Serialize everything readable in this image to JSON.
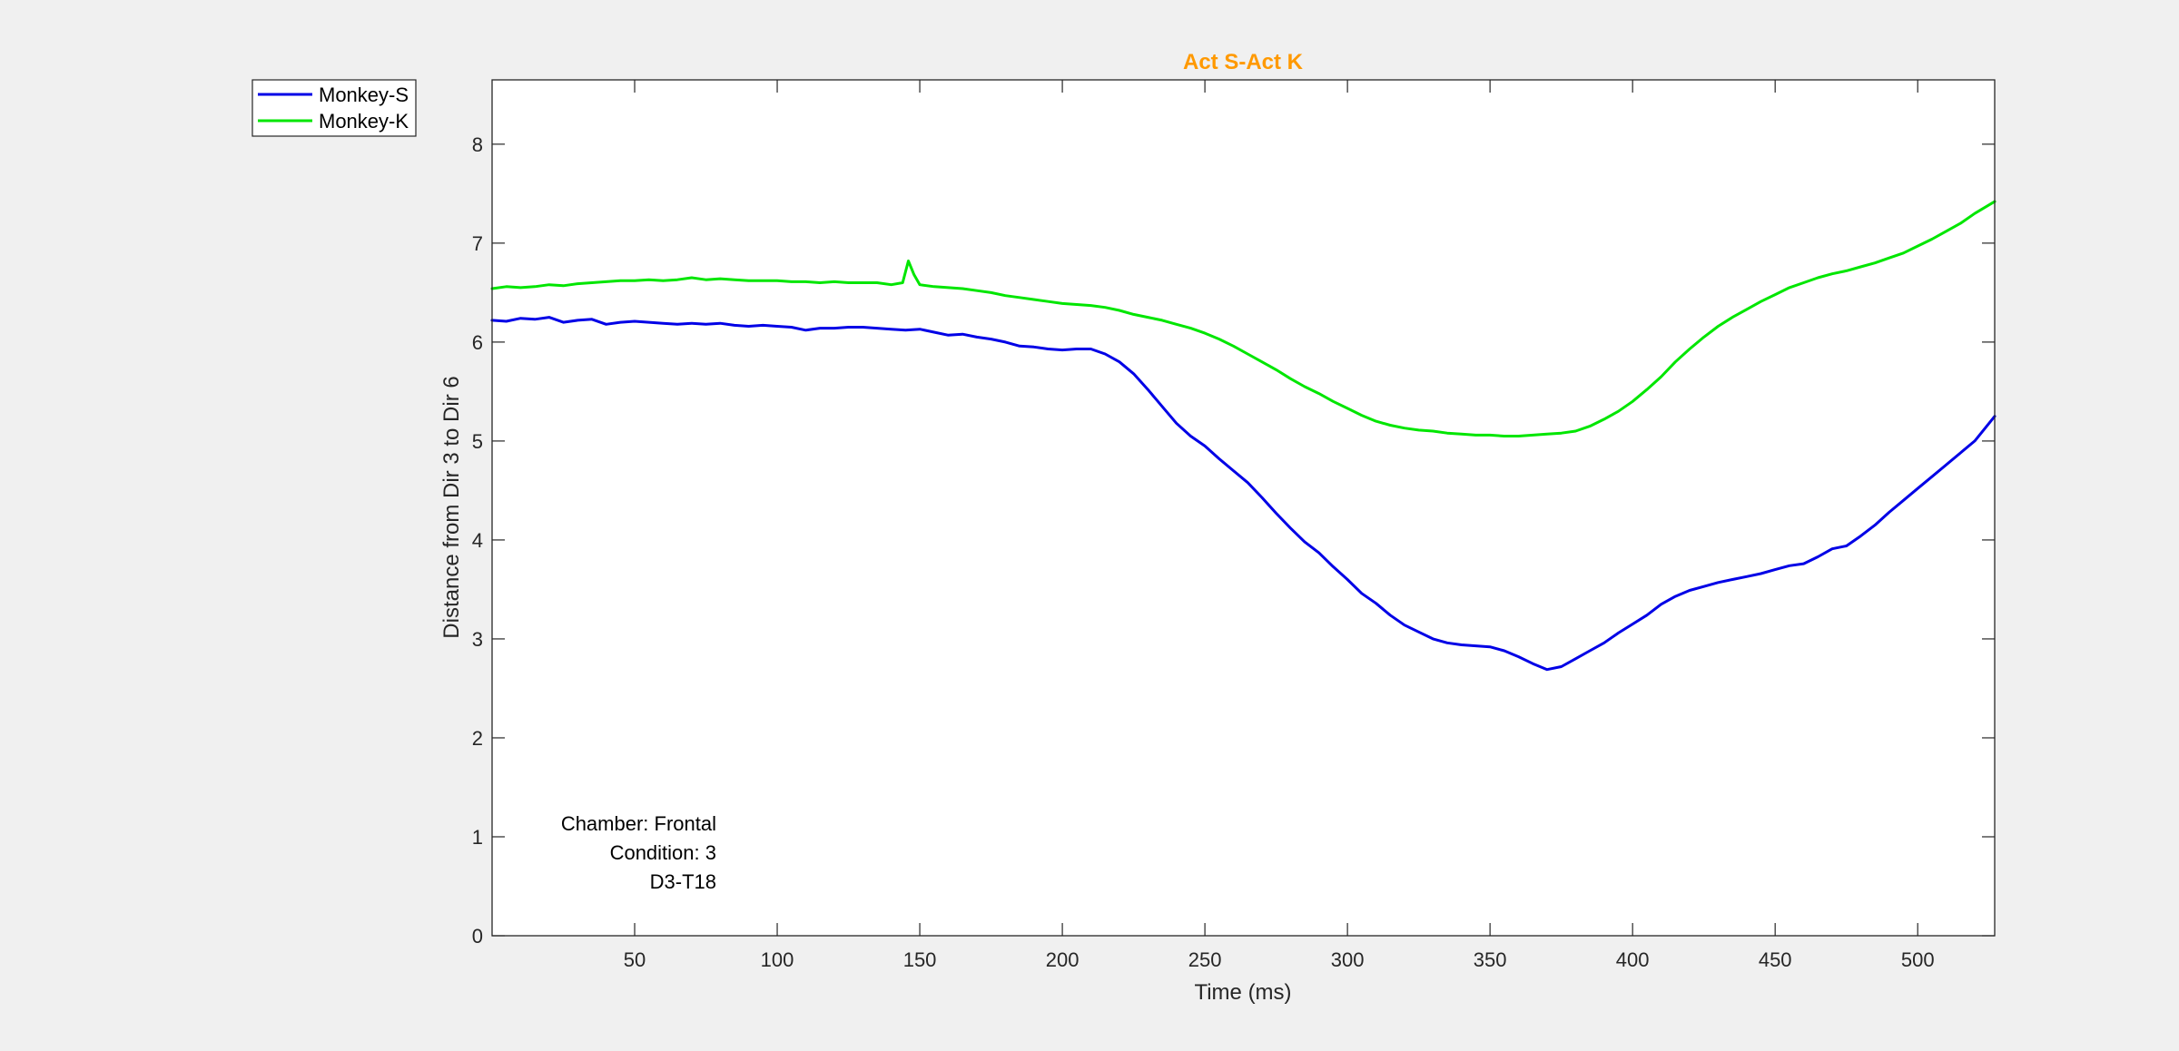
{
  "chart_data": {
    "type": "line",
    "title": "Act S-Act K",
    "title_color": "#ff9900",
    "xlabel": "Time (ms)",
    "ylabel": "Distance from Dir 3 to Dir 6",
    "xlim": [
      0,
      527
    ],
    "ylim": [
      0,
      8.65
    ],
    "xticks": [
      50,
      100,
      150,
      200,
      250,
      300,
      350,
      400,
      450,
      500
    ],
    "yticks": [
      0,
      1,
      2,
      3,
      4,
      5,
      6,
      7,
      8
    ],
    "grid": false,
    "legend_position": "outside top-left",
    "annotation_lines": [
      "Chamber: Frontal",
      "Condition: 3",
      "D3-T18"
    ],
    "series": [
      {
        "name": "Monkey-S",
        "color": "#0000e6",
        "x": [
          0,
          5,
          10,
          15,
          20,
          25,
          30,
          35,
          40,
          45,
          50,
          55,
          60,
          65,
          70,
          75,
          80,
          85,
          90,
          95,
          100,
          105,
          110,
          115,
          120,
          125,
          130,
          135,
          140,
          145,
          150,
          155,
          160,
          165,
          170,
          175,
          180,
          185,
          190,
          195,
          200,
          205,
          210,
          215,
          220,
          225,
          230,
          235,
          240,
          245,
          250,
          255,
          260,
          265,
          270,
          275,
          280,
          285,
          290,
          295,
          300,
          305,
          310,
          315,
          320,
          325,
          330,
          335,
          340,
          345,
          350,
          355,
          360,
          365,
          370,
          375,
          380,
          385,
          390,
          395,
          400,
          405,
          410,
          415,
          420,
          425,
          430,
          435,
          440,
          445,
          450,
          455,
          460,
          465,
          470,
          475,
          480,
          485,
          490,
          495,
          500,
          505,
          510,
          515,
          520,
          527
        ],
        "y": [
          6.22,
          6.21,
          6.24,
          6.23,
          6.25,
          6.2,
          6.22,
          6.23,
          6.18,
          6.2,
          6.21,
          6.2,
          6.19,
          6.18,
          6.19,
          6.18,
          6.19,
          6.17,
          6.16,
          6.17,
          6.16,
          6.15,
          6.12,
          6.14,
          6.14,
          6.15,
          6.15,
          6.14,
          6.13,
          6.12,
          6.13,
          6.1,
          6.07,
          6.08,
          6.05,
          6.03,
          6.0,
          5.96,
          5.95,
          5.93,
          5.92,
          5.93,
          5.93,
          5.88,
          5.8,
          5.68,
          5.52,
          5.35,
          5.18,
          5.05,
          4.95,
          4.82,
          4.7,
          4.58,
          4.43,
          4.27,
          4.12,
          3.98,
          3.87,
          3.73,
          3.6,
          3.46,
          3.36,
          3.24,
          3.14,
          3.07,
          3.0,
          2.96,
          2.94,
          2.93,
          2.92,
          2.88,
          2.82,
          2.75,
          2.69,
          2.72,
          2.8,
          2.88,
          2.96,
          3.06,
          3.15,
          3.24,
          3.35,
          3.43,
          3.49,
          3.53,
          3.57,
          3.6,
          3.63,
          3.66,
          3.7,
          3.74,
          3.76,
          3.83,
          3.91,
          3.94,
          4.04,
          4.15,
          4.28,
          4.4,
          4.52,
          4.64,
          4.76,
          4.88,
          5.0,
          5.25
        ]
      },
      {
        "name": "Monkey-K",
        "color": "#00e600",
        "x": [
          0,
          5,
          10,
          15,
          20,
          25,
          30,
          35,
          40,
          45,
          50,
          55,
          60,
          65,
          70,
          75,
          80,
          85,
          90,
          95,
          100,
          105,
          110,
          115,
          120,
          125,
          130,
          135,
          140,
          144,
          146,
          148,
          150,
          155,
          160,
          165,
          170,
          175,
          180,
          185,
          190,
          195,
          200,
          205,
          210,
          215,
          220,
          225,
          230,
          235,
          240,
          245,
          250,
          255,
          260,
          265,
          270,
          275,
          280,
          285,
          290,
          295,
          300,
          305,
          310,
          315,
          320,
          325,
          330,
          335,
          340,
          345,
          350,
          355,
          360,
          365,
          370,
          375,
          380,
          385,
          390,
          395,
          400,
          405,
          410,
          415,
          420,
          425,
          430,
          435,
          440,
          445,
          450,
          455,
          460,
          465,
          470,
          475,
          480,
          485,
          490,
          495,
          500,
          505,
          510,
          515,
          520,
          527
        ],
        "y": [
          6.54,
          6.56,
          6.55,
          6.56,
          6.58,
          6.57,
          6.59,
          6.6,
          6.61,
          6.62,
          6.62,
          6.63,
          6.62,
          6.63,
          6.65,
          6.63,
          6.64,
          6.63,
          6.62,
          6.62,
          6.62,
          6.61,
          6.61,
          6.6,
          6.61,
          6.6,
          6.6,
          6.6,
          6.58,
          6.6,
          6.82,
          6.68,
          6.58,
          6.56,
          6.55,
          6.54,
          6.52,
          6.5,
          6.47,
          6.45,
          6.43,
          6.41,
          6.39,
          6.38,
          6.37,
          6.35,
          6.32,
          6.28,
          6.25,
          6.22,
          6.18,
          6.14,
          6.09,
          6.03,
          5.96,
          5.88,
          5.8,
          5.72,
          5.63,
          5.55,
          5.48,
          5.4,
          5.33,
          5.26,
          5.2,
          5.16,
          5.13,
          5.11,
          5.1,
          5.08,
          5.07,
          5.06,
          5.06,
          5.05,
          5.05,
          5.06,
          5.07,
          5.08,
          5.1,
          5.15,
          5.22,
          5.3,
          5.4,
          5.52,
          5.65,
          5.8,
          5.93,
          6.05,
          6.16,
          6.25,
          6.33,
          6.41,
          6.48,
          6.55,
          6.6,
          6.65,
          6.69,
          6.72,
          6.76,
          6.8,
          6.85,
          6.9,
          6.97,
          7.04,
          7.12,
          7.2,
          7.3,
          7.42
        ]
      }
    ]
  }
}
